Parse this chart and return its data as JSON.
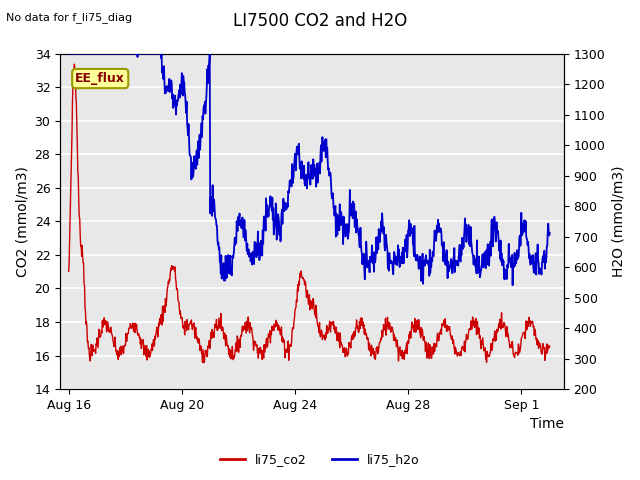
{
  "title": "LI7500 CO2 and H2O",
  "top_left_text": "No data for f_li75_diag",
  "xlabel": "Time",
  "ylabel_left": "CO2 (mmol/m3)",
  "ylabel_right": "H2O (mmol/m3)",
  "ylim_left": [
    14,
    34
  ],
  "ylim_right": [
    200,
    1300
  ],
  "yticks_left": [
    14,
    16,
    18,
    20,
    22,
    24,
    26,
    28,
    30,
    32,
    34
  ],
  "yticks_right": [
    200,
    300,
    400,
    500,
    600,
    700,
    800,
    900,
    1000,
    1100,
    1200,
    1300
  ],
  "xtick_labels": [
    "Aug 16",
    "Aug 20",
    "Aug 24",
    "Aug 28",
    "Sep 1"
  ],
  "xtick_positions": [
    0,
    4,
    8,
    12,
    16
  ],
  "xlim": [
    -0.3,
    17.5
  ],
  "legend_labels": [
    "li75_co2",
    "li75_h2o"
  ],
  "legend_colors": [
    "#cc0000",
    "#0000cc"
  ],
  "box_label": "EE_flux",
  "box_color": "#ffff99",
  "box_edge_color": "#999900",
  "plot_bg_color": "#e8e8e8",
  "grid_color": "#ffffff",
  "co2_color": "#cc0000",
  "h2o_color": "#0000cc",
  "title_fontsize": 12,
  "label_fontsize": 10,
  "tick_fontsize": 9
}
